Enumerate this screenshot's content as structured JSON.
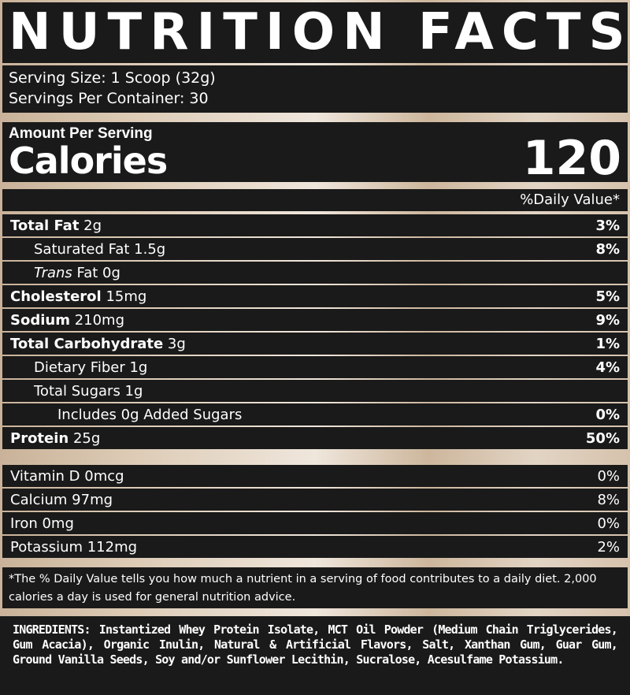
{
  "title": "NUTRITION FACTS",
  "serving": {
    "size": "Serving Size: 1 Scoop (32g)",
    "per_container": "Servings Per Container: 30"
  },
  "calories": {
    "amount_label": "Amount Per Serving",
    "label": "Calories",
    "value": "120"
  },
  "daily_value_header": "%Daily Value*",
  "nutrients": [
    {
      "name": "Total Fat",
      "amount": " 2g",
      "dv": "3%"
    },
    {
      "name": "Saturated Fat 1.5g",
      "amount": "",
      "dv": "8%"
    },
    {
      "name": "Trans",
      "amount": " Fat 0g",
      "dv": ""
    },
    {
      "name": "Cholesterol",
      "amount": " 15mg",
      "dv": "5%"
    },
    {
      "name": "Sodium",
      "amount": " 210mg",
      "dv": "9%"
    },
    {
      "name": "Total Carbohydrate",
      "amount": " 3g",
      "dv": "1%"
    },
    {
      "name": "Dietary Fiber 1g",
      "amount": "",
      "dv": "4%"
    },
    {
      "name": "Total Sugars 1g",
      "amount": "",
      "dv": ""
    },
    {
      "name": "Includes 0g Added Sugars",
      "amount": "",
      "dv": "0%"
    },
    {
      "name": "Protein",
      "amount": " 25g",
      "dv": "50%"
    }
  ],
  "vitamins": [
    {
      "name": "Vitamin D 0mcg",
      "dv": "0%"
    },
    {
      "name": "Calcium 97mg",
      "dv": "8%"
    },
    {
      "name": "Iron 0mg",
      "dv": "0%"
    },
    {
      "name": "Potassium 112mg",
      "dv": "2%"
    }
  ],
  "footnote": "*The % Daily Value tells you how much a nutrient in a serving of food contributes to a daily diet. 2,000 calories a day is used for general nutrition advice.",
  "ingredients": "INGREDIENTS: Instantized Whey Protein Isolate, MCT Oil Powder (Medium Chain Triglycerides, Gum Acacia), Organic Inulin, Natural & Artificial Flavors, Salt, Xanthan Gum, Guar Gum, Ground Vanilla Seeds, Soy and/or Sunflower Lecithin, Sucralose, Acesulfame Potassium."
}
